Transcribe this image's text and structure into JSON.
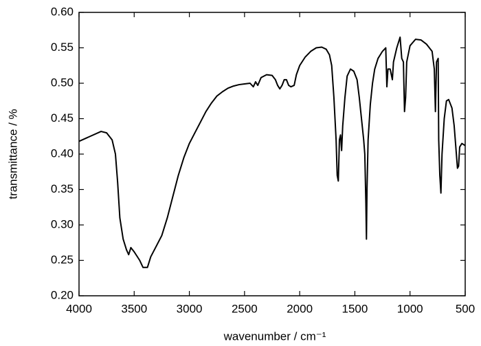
{
  "chart_data": {
    "type": "line",
    "xlabel": "wavenumber / cm⁻¹",
    "ylabel": "transmittance / %",
    "xlim": [
      4000,
      500
    ],
    "ylim": [
      0.2,
      0.6
    ],
    "xticks": [
      4000,
      3500,
      3000,
      2500,
      2000,
      1500,
      1000,
      500
    ],
    "yticks": [
      {
        "value": 0.2,
        "label": "0.20"
      },
      0.25,
      {
        "value": 0.3,
        "label": "0.30"
      },
      0.35,
      {
        "value": 0.4,
        "label": "0.40"
      },
      0.45,
      {
        "value": 0.5,
        "label": "0.50"
      },
      0.55,
      {
        "value": 0.6,
        "label": "0.60"
      }
    ],
    "series": [
      {
        "color": "#000000",
        "x": [
          4000,
          3900,
          3800,
          3750,
          3700,
          3670,
          3650,
          3630,
          3600,
          3570,
          3550,
          3530,
          3500,
          3450,
          3420,
          3380,
          3350,
          3300,
          3250,
          3200,
          3150,
          3100,
          3050,
          3000,
          2950,
          2900,
          2850,
          2800,
          2750,
          2700,
          2650,
          2600,
          2550,
          2500,
          2450,
          2420,
          2400,
          2380,
          2350,
          2300,
          2250,
          2220,
          2200,
          2180,
          2160,
          2140,
          2120,
          2100,
          2080,
          2050,
          2030,
          2000,
          1950,
          1900,
          1850,
          1800,
          1760,
          1730,
          1710,
          1690,
          1670,
          1660,
          1650,
          1640,
          1630,
          1620,
          1610,
          1590,
          1570,
          1540,
          1510,
          1480,
          1460,
          1440,
          1420,
          1410,
          1400,
          1395,
          1390,
          1380,
          1360,
          1340,
          1320,
          1290,
          1250,
          1220,
          1210,
          1200,
          1180,
          1160,
          1150,
          1120,
          1100,
          1090,
          1075,
          1060,
          1050,
          1040,
          1030,
          1000,
          950,
          900,
          850,
          800,
          780,
          770,
          760,
          745,
          740,
          730,
          720,
          710,
          690,
          670,
          650,
          620,
          600,
          580,
          570,
          560,
          550,
          530,
          500
        ],
        "values": [
          0.418,
          0.425,
          0.432,
          0.43,
          0.42,
          0.4,
          0.36,
          0.31,
          0.28,
          0.265,
          0.258,
          0.268,
          0.262,
          0.25,
          0.24,
          0.24,
          0.255,
          0.27,
          0.285,
          0.31,
          0.34,
          0.37,
          0.395,
          0.415,
          0.43,
          0.445,
          0.46,
          0.472,
          0.482,
          0.488,
          0.493,
          0.496,
          0.498,
          0.499,
          0.5,
          0.495,
          0.502,
          0.497,
          0.508,
          0.512,
          0.511,
          0.505,
          0.497,
          0.492,
          0.497,
          0.505,
          0.505,
          0.497,
          0.495,
          0.497,
          0.512,
          0.525,
          0.537,
          0.545,
          0.55,
          0.551,
          0.548,
          0.54,
          0.525,
          0.48,
          0.42,
          0.37,
          0.362,
          0.42,
          0.427,
          0.405,
          0.44,
          0.48,
          0.51,
          0.52,
          0.517,
          0.505,
          0.48,
          0.45,
          0.42,
          0.4,
          0.33,
          0.28,
          0.35,
          0.42,
          0.47,
          0.5,
          0.52,
          0.535,
          0.545,
          0.55,
          0.495,
          0.52,
          0.52,
          0.505,
          0.53,
          0.55,
          0.56,
          0.565,
          0.535,
          0.53,
          0.46,
          0.48,
          0.53,
          0.553,
          0.562,
          0.561,
          0.555,
          0.545,
          0.52,
          0.46,
          0.53,
          0.535,
          0.42,
          0.37,
          0.345,
          0.4,
          0.45,
          0.475,
          0.477,
          0.465,
          0.44,
          0.4,
          0.38,
          0.383,
          0.41,
          0.415,
          0.412
        ]
      }
    ]
  }
}
